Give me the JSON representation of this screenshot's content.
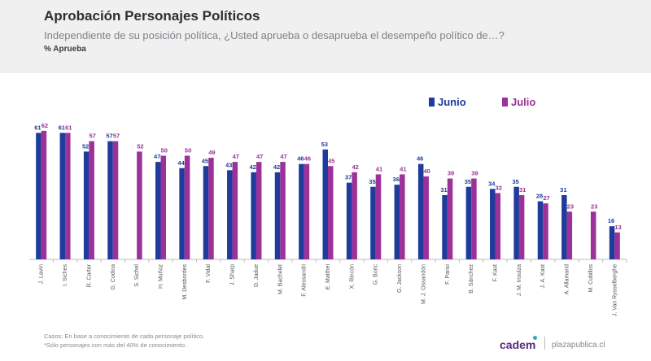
{
  "header": {
    "title": "Aprobación Personajes Políticos",
    "subtitle": "Independiente de su posición política, ¿Usted aprueba o desaprueba el desempeño político de…?",
    "metric_label": "% Aprueba"
  },
  "footer": {
    "note_1": "Casos: En base a conocimiento de cada personaje político.",
    "note_2": "*Sólo personajes con más del 40% de conocimiento.",
    "brand": "cadem",
    "site": "plazapublica.cl"
  },
  "colors": {
    "junio": "#1f3b9c",
    "julio": "#9b3199",
    "header_bg": "#f0f0f1"
  },
  "chart_data": {
    "type": "bar",
    "title": "Aprobación Personajes Políticos",
    "ylabel": "% Aprueba",
    "ylim": [
      0,
      70
    ],
    "grid": false,
    "legend_position": "top-right",
    "categories": [
      "J. Lavín",
      "I. Siches",
      "R. Carter",
      "G. Codina",
      "S. Sichel",
      "H. Muñoz",
      "M. Desbordes",
      "F. Vidal",
      "J. Sharp",
      "D. Jadue",
      "M. Bachelet",
      "F. Alessandri",
      "E. Matthei",
      "X. Rincón",
      "G. Boric",
      "G. Jackson",
      "M. J. Ossandón",
      "F. Parisi",
      "B. Sánchez",
      "F. Kast",
      "J. M. Insulza",
      "J. A. Kast",
      "A. Allamand",
      "M. Cubillos",
      "J. Van Rysselberghe"
    ],
    "series": [
      {
        "name": "Junio",
        "values": [
          61,
          61,
          52,
          57,
          null,
          47,
          44,
          45,
          43,
          42,
          42,
          46,
          53,
          37,
          35,
          36,
          46,
          31,
          35,
          34,
          35,
          28,
          31,
          null,
          16
        ]
      },
      {
        "name": "Julio",
        "values": [
          62,
          61,
          57,
          57,
          52,
          50,
          50,
          49,
          47,
          47,
          47,
          46,
          45,
          42,
          41,
          41,
          40,
          39,
          39,
          32,
          31,
          27,
          23,
          23,
          13
        ]
      }
    ]
  }
}
